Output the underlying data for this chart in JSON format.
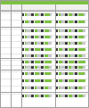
{
  "bg_color": "#ffffff",
  "green": "#6abf40",
  "dark_green": "#4a8a2a",
  "light_green": "#a8d878",
  "gray": "#aaaaaa",
  "dark_gray": "#666666",
  "black": "#333333",
  "white": "#ffffff",
  "header_green": "#7dc142",
  "light_bg": "#f2f2f2",
  "mid_gray": "#cccccc",
  "row_alt": "#f8f8f8",
  "figw": 1.0,
  "figh": 1.21,
  "dpi": 100
}
